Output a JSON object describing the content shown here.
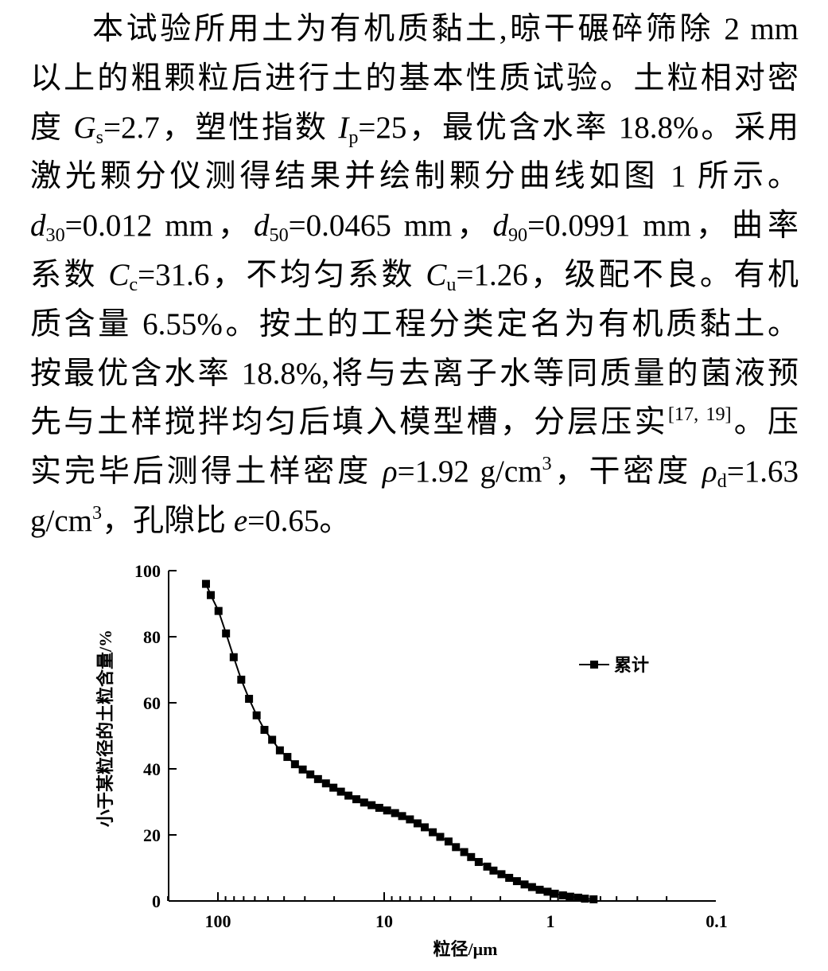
{
  "text": {
    "l1": "本试验所用土为有机质黏土,晾干碾碎筛除 2 mm",
    "l2": "以上的粗颗粒后进行土的基本性质试验。土粒相对密",
    "l3": {
      "a": "度 ",
      "gs_sym": "G",
      "gs_sub": "s",
      "b": "=2.7，塑性指数 ",
      "ip_sym": "I",
      "ip_sub": "p",
      "c": "=25，最优含水率 18.8%。采用"
    },
    "l4": "激光颗分仪测得结果并绘制颗分曲线如图 1 所示。",
    "l5": {
      "d": "d",
      "s30": "30",
      "a": "=0.012 mm，",
      "s50": "50",
      "b": "=0.0465 mm，",
      "s90": "90",
      "c": "=0.0991 mm，曲率"
    },
    "l6": {
      "a": "系数 ",
      "c": "C",
      "cc_sub": "c",
      "b": "=31.6，不均匀系数 ",
      "cu_sub": "u",
      "d": "=1.26，级配不良。有机"
    },
    "l7": "质含量 6.55%。按土的工程分类定名为有机质黏土。",
    "l8": "按最优含水率 18.8%,将与去离子水等同质量的菌液预",
    "l9": {
      "a": "先与土样搅拌均匀后填入模型槽，分层压实",
      "ref": "[17, 19]",
      "b": "。压"
    },
    "l10": {
      "a": "实完毕后测得土样密度 ",
      "rho": "ρ",
      "b": "=1.92 g/cm",
      "cube": "3",
      "c": "，干密度 ",
      "d_sub": "d",
      "e": "=1.63"
    },
    "l11": {
      "a": "g/cm",
      "cube": "3",
      "b": "，孔隙比 ",
      "e_sym": "e",
      "c": "=0.65。"
    }
  },
  "chart_data": {
    "type": "line",
    "xlabel": "粒径/μm",
    "ylabel": "小于某粒径的土粒含量/%",
    "x_scale": "log",
    "x_reversed": true,
    "xlim": [
      0.1,
      200
    ],
    "ylim": [
      0,
      100
    ],
    "xticks": [
      100,
      10,
      1,
      0.1
    ],
    "xtick_labels": [
      "100",
      "10",
      "1",
      "0.1"
    ],
    "yticks": [
      0,
      20,
      40,
      60,
      80,
      100
    ],
    "legend_position": "right",
    "grid": false,
    "series": [
      {
        "name": "累计",
        "color": "#000000",
        "marker": "square",
        "x": [
          118,
          110.4,
          99.2,
          89.4,
          80.4,
          72.4,
          65,
          58.5,
          52.5,
          47.2,
          42.4,
          38.2,
          34.4,
          30.9,
          27.8,
          25,
          22.4,
          20.2,
          18.2,
          16.4,
          14.7,
          13.2,
          11.9,
          10.7,
          9.6,
          8.6,
          7.8,
          7,
          6.3,
          5.7,
          5.1,
          4.6,
          4.1,
          3.7,
          3.3,
          3,
          2.7,
          2.4,
          2.2,
          1.97,
          1.77,
          1.59,
          1.43,
          1.29,
          1.16,
          1.04,
          0.94,
          0.84,
          0.76,
          0.68,
          0.62,
          0.55
        ],
        "y": [
          96,
          92.6,
          87.8,
          81,
          73.8,
          67,
          61.2,
          56.2,
          51.8,
          48.8,
          45.6,
          43.6,
          41.4,
          39.8,
          38.3,
          36.9,
          35.6,
          34.3,
          33.1,
          31.9,
          30.8,
          29.8,
          29,
          28.2,
          27.4,
          26.6,
          25.7,
          24.7,
          23.5,
          22.3,
          20.8,
          19.4,
          18,
          16.3,
          14.8,
          13.3,
          11.8,
          10.4,
          9.2,
          8.1,
          7,
          6,
          5,
          4.2,
          3.4,
          2.8,
          2.2,
          1.7,
          1.3,
          1,
          0.7,
          0.5
        ]
      }
    ]
  }
}
